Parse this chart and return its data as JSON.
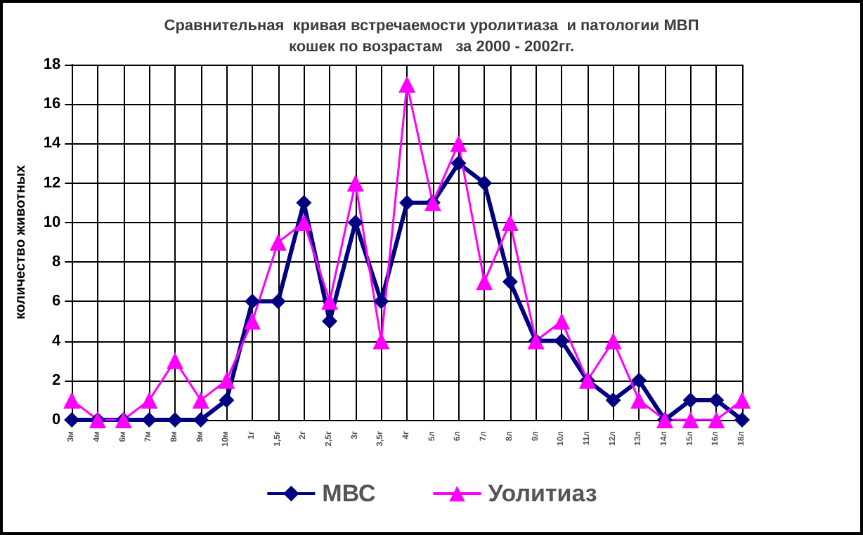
{
  "chart_data": {
    "type": "line",
    "title": "Сравнительная  кривая встречаемости уролитиаза  и патологии МВП\nкошек по возрастам   за 2000 - 2002гг.",
    "ylabel": "количество животных",
    "categories": [
      "3м",
      "4м",
      "6м",
      "7м",
      "8м",
      "9м",
      "10м",
      "1г",
      "1,5г",
      "2г",
      "2,5г",
      "3г",
      "3,5г",
      "4г",
      "5л",
      "6л",
      "7л",
      "8л",
      "9л",
      "10л",
      "11л",
      "12л",
      "13л",
      "14л",
      "15л",
      "16л",
      "18л"
    ],
    "series": [
      {
        "name": "МВС",
        "color": "#000080",
        "marker": "diamond",
        "values": [
          0,
          0,
          0,
          0,
          0,
          0,
          1,
          6,
          6,
          11,
          5,
          10,
          6,
          11,
          11,
          13,
          12,
          7,
          4,
          4,
          2,
          1,
          2,
          0,
          1,
          1,
          0
        ]
      },
      {
        "name": "Уолитиаз",
        "color": "#ff00ff",
        "marker": "triangle",
        "values": [
          1,
          0,
          0,
          1,
          3,
          1,
          2,
          5,
          9,
          10,
          6,
          12,
          4,
          17,
          11,
          14,
          7,
          10,
          4,
          5,
          2,
          4,
          1,
          0,
          0,
          0,
          1
        ]
      }
    ],
    "ylim": [
      0,
      18
    ],
    "yticks": [
      0,
      2,
      4,
      6,
      8,
      10,
      12,
      14,
      16,
      18
    ],
    "grid": true,
    "legend": "bottom"
  }
}
